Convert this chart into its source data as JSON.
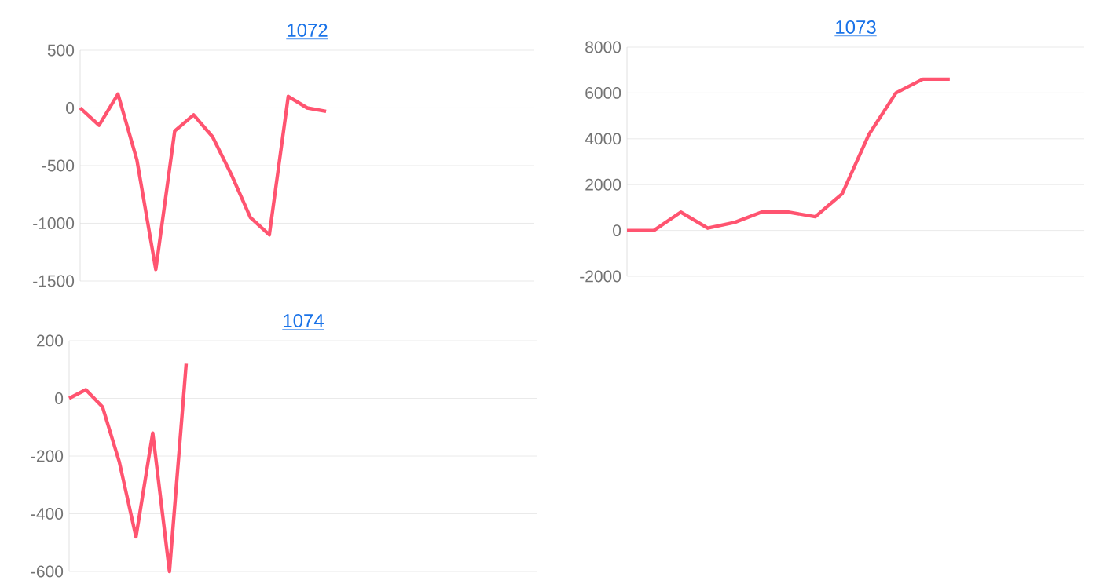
{
  "chart_data": [
    {
      "type": "line",
      "title": "1072",
      "categories": [
        null,
        null,
        null,
        null,
        null,
        null,
        null,
        null,
        null,
        null,
        null,
        null,
        null,
        null,
        null,
        null,
        null,
        null,
        null,
        null,
        null,
        null,
        null,
        null,
        null
      ],
      "values": [
        0,
        -150,
        120,
        -450,
        -1400,
        -200,
        -60,
        -250,
        -580,
        -950,
        -1100,
        100,
        0,
        -30,
        null,
        null,
        null,
        null,
        null,
        null,
        null,
        null,
        null,
        null,
        null
      ],
      "color": "#ff5470",
      "ylim": [
        -1500,
        500
      ],
      "yticks": [
        -1500,
        -1000,
        -500,
        0,
        500
      ],
      "grid": "y",
      "tick_labels": "y"
    },
    {
      "type": "line",
      "title": "1073",
      "categories": [
        null,
        null,
        null,
        null,
        null,
        null,
        null,
        null,
        null,
        null,
        null,
        null,
        null,
        null,
        null,
        null,
        null,
        null
      ],
      "values": [
        0,
        0,
        800,
        100,
        350,
        800,
        800,
        600,
        1600,
        4200,
        6000,
        6600,
        6600,
        null,
        null,
        null,
        null,
        null
      ],
      "color": "#ff5470",
      "ylim": [
        -2000,
        8000
      ],
      "yticks": [
        -2000,
        0,
        2000,
        4000,
        6000,
        8000
      ],
      "grid": "y",
      "tick_labels": "y"
    },
    {
      "type": "line",
      "title": "1074",
      "categories": [
        null,
        null,
        null,
        null,
        null,
        null,
        null,
        null,
        null,
        null,
        null,
        null,
        null,
        null,
        null,
        null,
        null,
        null,
        null,
        null,
        null,
        null,
        null,
        null,
        null,
        null,
        null,
        null,
        null
      ],
      "values": [
        0,
        30,
        -30,
        -220,
        -480,
        -120,
        -600,
        120,
        null,
        null,
        null,
        null,
        null,
        null,
        null,
        null,
        null,
        null,
        null,
        null,
        null,
        null,
        null,
        null,
        null,
        null,
        null,
        null,
        null
      ],
      "color": "#ff5470",
      "ylim": [
        -600,
        200
      ],
      "yticks": [
        -600,
        -400,
        -200,
        0,
        200
      ],
      "grid": "y",
      "tick_labels": "y"
    }
  ]
}
